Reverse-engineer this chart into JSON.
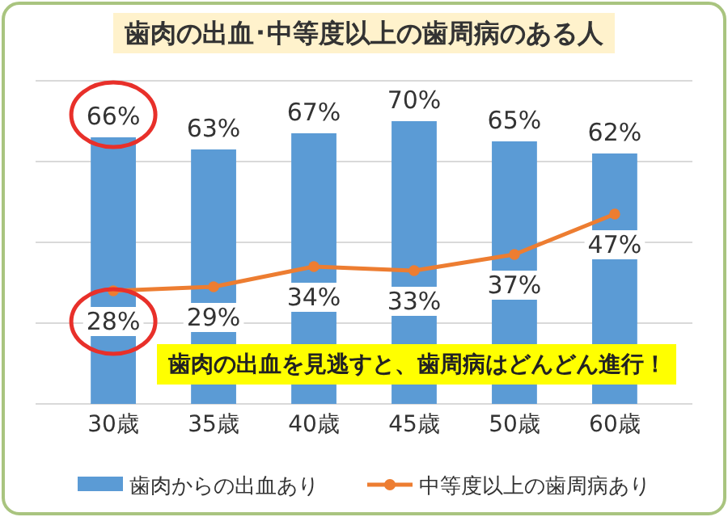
{
  "chart_data": {
    "type": "bar",
    "title": "歯肉の出血･中等度以上の歯周病のある人",
    "categories": [
      "30歳",
      "35歳",
      "40歳",
      "45歳",
      "50歳",
      "60歳"
    ],
    "series": [
      {
        "name": "歯肉からの出血あり",
        "color": "#5b9bd5",
        "values": [
          66,
          63,
          67,
          70,
          65,
          62
        ],
        "value_labels": [
          "66%",
          "63%",
          "67%",
          "70%",
          "65%",
          "62%"
        ]
      },
      {
        "name": "中等度以上の歯周病あり",
        "type": "line",
        "color": "#ed7d31",
        "values": [
          28,
          29,
          34,
          33,
          37,
          47
        ],
        "value_labels": [
          "28%",
          "29%",
          "34%",
          "33%",
          "37%",
          "47%"
        ]
      }
    ],
    "tick_labels": "x",
    "grid": "y",
    "legend": "bottom",
    "marker": "circle",
    "line_style": "solid",
    "annotations": [
      "歯肉の出血を見逃すと、歯周病はどんどん進行！"
    ]
  }
}
